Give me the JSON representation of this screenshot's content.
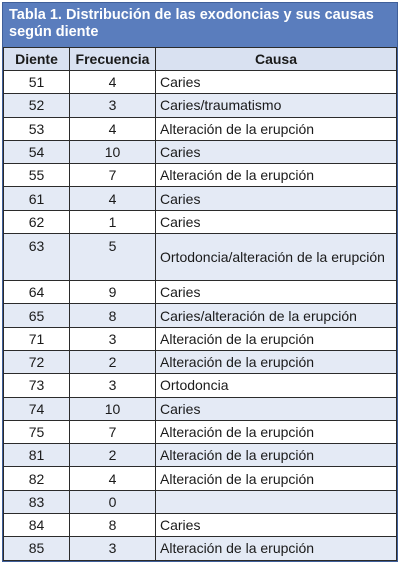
{
  "table": {
    "title": "Tabla 1. Distribución de las exodoncias y sus causas según diente",
    "headers": [
      "Diente",
      "Frecuencia",
      "Causa"
    ],
    "rows": [
      {
        "diente": "51",
        "frecuencia": "4",
        "causa": "Caries"
      },
      {
        "diente": "52",
        "frecuencia": "3",
        "causa": "Caries/traumatismo"
      },
      {
        "diente": "53",
        "frecuencia": "4",
        "causa": "Alteración de la erupción"
      },
      {
        "diente": "54",
        "frecuencia": "10",
        "causa": "Caries"
      },
      {
        "diente": "55",
        "frecuencia": "7",
        "causa": "Alteración de la erupción"
      },
      {
        "diente": "61",
        "frecuencia": "4",
        "causa": "Caries"
      },
      {
        "diente": "62",
        "frecuencia": "1",
        "causa": "Caries"
      },
      {
        "diente": "63",
        "frecuencia": "5",
        "causa": "Ortodoncia/alteración de la erupción"
      },
      {
        "diente": "64",
        "frecuencia": "9",
        "causa": "Caries"
      },
      {
        "diente": "65",
        "frecuencia": "8",
        "causa": "Caries/alteración de la erupción"
      },
      {
        "diente": "71",
        "frecuencia": "3",
        "causa": "Alteración de la erupción"
      },
      {
        "diente": "72",
        "frecuencia": "2",
        "causa": "Alteración de la erupción"
      },
      {
        "diente": "73",
        "frecuencia": "3",
        "causa": "Ortodoncia"
      },
      {
        "diente": "74",
        "frecuencia": "10",
        "causa": "Caries"
      },
      {
        "diente": "75",
        "frecuencia": "7",
        "causa": "Alteración de la erupción"
      },
      {
        "diente": "81",
        "frecuencia": "2",
        "causa": "Alteración de la erupción"
      },
      {
        "diente": "82",
        "frecuencia": "4",
        "causa": "Alteración de la erupción"
      },
      {
        "diente": "83",
        "frecuencia": "0",
        "causa": ""
      },
      {
        "diente": "84",
        "frecuencia": "8",
        "causa": "Caries"
      },
      {
        "diente": "85",
        "frecuencia": "3",
        "causa": "Alteración de la erupción"
      }
    ]
  }
}
